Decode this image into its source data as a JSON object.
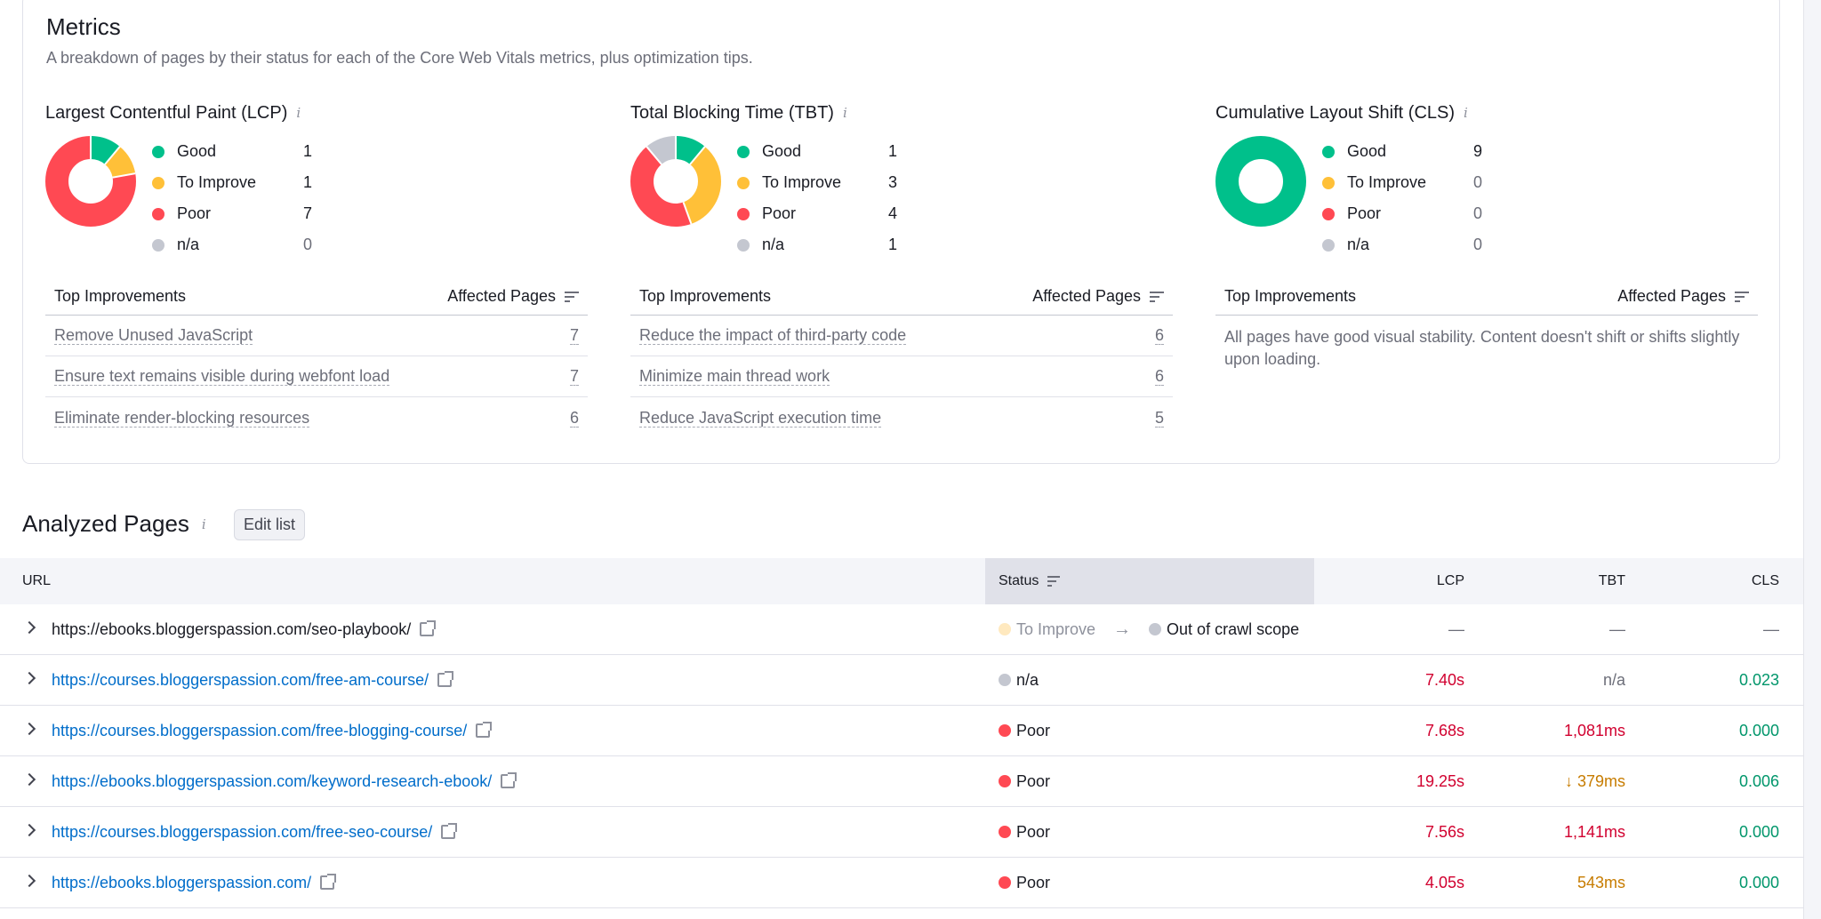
{
  "metrics": {
    "title": "Metrics",
    "subtitle": "A breakdown of pages by their status for each of the Core Web Vitals metrics, plus optimization tips.",
    "colors": {
      "good": "#00c08b",
      "to_improve": "#ffc038",
      "poor": "#ff4953",
      "na": "#c4c7d0"
    },
    "panels": [
      {
        "title": "Largest Contentful Paint (LCP)",
        "legend": [
          {
            "label": "Good",
            "count": "1",
            "value": 1
          },
          {
            "label": "To Improve",
            "count": "1",
            "value": 1
          },
          {
            "label": "Poor",
            "count": "7",
            "value": 7
          },
          {
            "label": "n/a",
            "count": "0",
            "value": 0
          }
        ],
        "table_header": {
          "left": "Top Improvements",
          "right": "Affected Pages"
        },
        "rows": [
          {
            "label": "Remove Unused JavaScript",
            "count": "7"
          },
          {
            "label": "Ensure text remains visible during webfont load",
            "count": "7"
          },
          {
            "label": "Eliminate render-blocking resources",
            "count": "6"
          }
        ]
      },
      {
        "title": "Total Blocking Time (TBT)",
        "legend": [
          {
            "label": "Good",
            "count": "1",
            "value": 1
          },
          {
            "label": "To Improve",
            "count": "3",
            "value": 3
          },
          {
            "label": "Poor",
            "count": "4",
            "value": 4
          },
          {
            "label": "n/a",
            "count": "1",
            "value": 1
          }
        ],
        "table_header": {
          "left": "Top Improvements",
          "right": "Affected Pages"
        },
        "rows": [
          {
            "label": "Reduce the impact of third-party code",
            "count": "6"
          },
          {
            "label": "Minimize main thread work",
            "count": "6"
          },
          {
            "label": "Reduce JavaScript execution time",
            "count": "5"
          }
        ]
      },
      {
        "title": "Cumulative Layout Shift (CLS)",
        "legend": [
          {
            "label": "Good",
            "count": "9",
            "value": 9
          },
          {
            "label": "To Improve",
            "count": "0",
            "value": 0
          },
          {
            "label": "Poor",
            "count": "0",
            "value": 0
          },
          {
            "label": "n/a",
            "count": "0",
            "value": 0
          }
        ],
        "table_header": {
          "left": "Top Improvements",
          "right": "Affected Pages"
        },
        "message": "All pages have good visual stability. Content doesn't shift or shifts slightly upon loading."
      }
    ]
  },
  "analyzed": {
    "title": "Analyzed Pages",
    "edit_label": "Edit list",
    "columns": {
      "url": "URL",
      "status": "Status",
      "lcp": "LCP",
      "tbt": "TBT",
      "cls": "CLS"
    },
    "rows": [
      {
        "url": "https://ebooks.bloggerspassion.com/seo-playbook/",
        "status": "To Improve",
        "status2": "Out of crawl scope",
        "lcp": "—",
        "tbt": "—",
        "cls": "—"
      },
      {
        "url": "https://courses.bloggerspassion.com/free-am-course/",
        "status": "n/a",
        "lcp": "7.40s",
        "tbt": "n/a",
        "cls": "0.023"
      },
      {
        "url": "https://courses.bloggerspassion.com/free-blogging-course/",
        "status": "Poor",
        "lcp": "7.68s",
        "tbt": "1,081ms",
        "cls": "0.000"
      },
      {
        "url": "https://ebooks.bloggerspassion.com/keyword-research-ebook/",
        "status": "Poor",
        "lcp": "19.25s",
        "tbt": "379ms",
        "cls": "0.006"
      },
      {
        "url": "https://courses.bloggerspassion.com/free-seo-course/",
        "status": "Poor",
        "lcp": "7.56s",
        "tbt": "1,141ms",
        "cls": "0.000"
      },
      {
        "url": "https://ebooks.bloggerspassion.com/",
        "status": "Poor",
        "lcp": "4.05s",
        "tbt": "543ms",
        "cls": "0.000"
      }
    ]
  }
}
